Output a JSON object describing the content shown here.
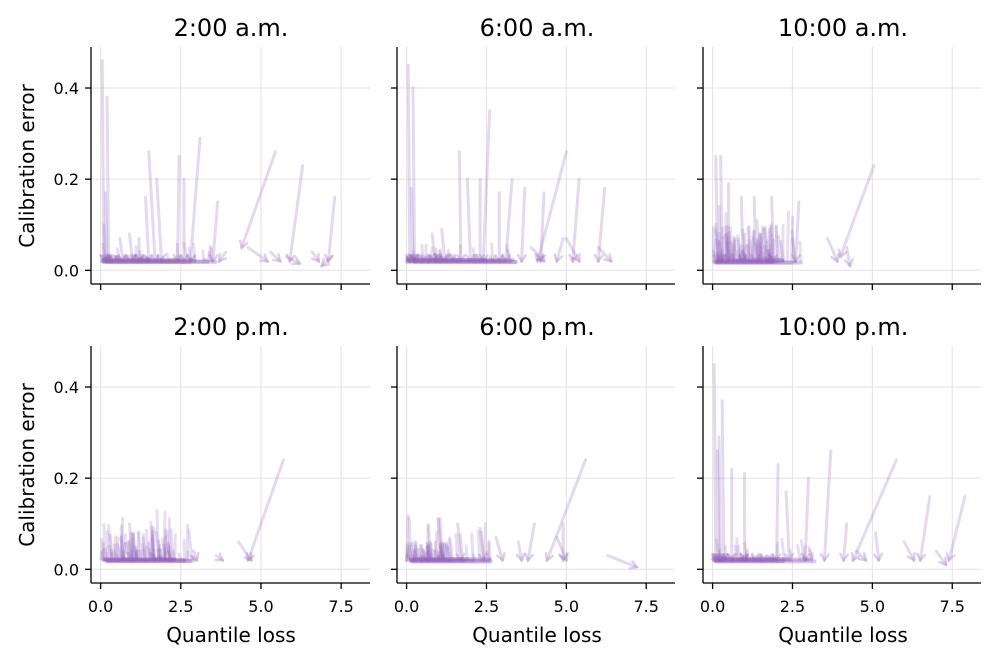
{
  "figure": {
    "color": "#9467bd",
    "grid_color": "#e6e6e6",
    "shared_x": true,
    "shared_y": true
  },
  "chart_data": [
    {
      "type": "line",
      "title": "2:00 a.m.",
      "xlabel": "",
      "ylabel": "Calibration error",
      "xlim": [
        -0.3,
        8.4
      ],
      "ylim": [
        -0.03,
        0.49
      ],
      "xticks": [
        "0.0",
        "2.5",
        "5.0",
        "7.5"
      ],
      "yticks": [
        "0.0",
        "0.2",
        "0.4"
      ],
      "grid": true,
      "segments": [
        [
          [
            0.05,
            0.46
          ],
          [
            0.1,
            0.02
          ]
        ],
        [
          [
            0.2,
            0.38
          ],
          [
            0.25,
            0.02
          ]
        ],
        [
          [
            0.15,
            0.17
          ],
          [
            0.2,
            0.02
          ]
        ],
        [
          [
            0.1,
            0.1
          ],
          [
            0.15,
            0.02
          ]
        ],
        [
          [
            1.5,
            0.26
          ],
          [
            1.7,
            0.02
          ]
        ],
        [
          [
            1.4,
            0.16
          ],
          [
            1.5,
            0.02
          ]
        ],
        [
          [
            1.75,
            0.2
          ],
          [
            1.9,
            0.02
          ]
        ],
        [
          [
            2.45,
            0.25
          ],
          [
            2.4,
            0.02
          ]
        ],
        [
          [
            3.1,
            0.29
          ],
          [
            2.8,
            0.02
          ]
        ],
        [
          [
            2.6,
            0.2
          ],
          [
            2.6,
            0.02
          ]
        ],
        [
          [
            3.65,
            0.15
          ],
          [
            3.5,
            0.02
          ]
        ],
        [
          [
            5.45,
            0.26
          ],
          [
            4.4,
            0.05
          ]
        ],
        [
          [
            6.3,
            0.23
          ],
          [
            5.9,
            0.02
          ]
        ],
        [
          [
            7.3,
            0.16
          ],
          [
            7.1,
            0.02
          ]
        ],
        [
          [
            3.9,
            0.04
          ],
          [
            3.7,
            0.02
          ]
        ],
        [
          [
            4.6,
            0.05
          ],
          [
            5.2,
            0.02
          ]
        ],
        [
          [
            5.3,
            0.04
          ],
          [
            5.6,
            0.02
          ]
        ],
        [
          [
            6.6,
            0.04
          ],
          [
            6.8,
            0.02
          ]
        ],
        [
          [
            7.2,
            0.03
          ],
          [
            6.9,
            0.01
          ]
        ],
        [
          [
            5.8,
            0.03
          ],
          [
            6.2,
            0.015
          ]
        ],
        [
          [
            0.9,
            0.08
          ],
          [
            1.0,
            0.02
          ]
        ],
        [
          [
            1.2,
            0.07
          ],
          [
            1.2,
            0.02
          ]
        ],
        [
          [
            0.6,
            0.07
          ],
          [
            0.7,
            0.02
          ]
        ]
      ],
      "cluster": {
        "x_max": 3.6,
        "y_max": 0.06,
        "dense_x": 1.5,
        "dense_y": 0.035,
        "count": 90
      }
    },
    {
      "type": "line",
      "title": "6:00 a.m.",
      "xlabel": "",
      "ylabel": "",
      "xlim": [
        -0.3,
        8.4
      ],
      "ylim": [
        -0.03,
        0.49
      ],
      "xticks": [
        "0.0",
        "2.5",
        "5.0",
        "7.5"
      ],
      "yticks": [
        "0.0",
        "0.2",
        "0.4"
      ],
      "grid": true,
      "segments": [
        [
          [
            0.05,
            0.45
          ],
          [
            0.1,
            0.02
          ]
        ],
        [
          [
            0.2,
            0.4
          ],
          [
            0.25,
            0.02
          ]
        ],
        [
          [
            0.15,
            0.18
          ],
          [
            0.2,
            0.02
          ]
        ],
        [
          [
            2.6,
            0.35
          ],
          [
            2.4,
            0.02
          ]
        ],
        [
          [
            1.65,
            0.26
          ],
          [
            1.7,
            0.02
          ]
        ],
        [
          [
            1.9,
            0.2
          ],
          [
            2.0,
            0.02
          ]
        ],
        [
          [
            2.3,
            0.2
          ],
          [
            2.3,
            0.02
          ]
        ],
        [
          [
            3.3,
            0.2
          ],
          [
            3.1,
            0.02
          ]
        ],
        [
          [
            2.9,
            0.17
          ],
          [
            2.9,
            0.02
          ]
        ],
        [
          [
            3.7,
            0.18
          ],
          [
            3.6,
            0.02
          ]
        ],
        [
          [
            5.0,
            0.26
          ],
          [
            4.1,
            0.02
          ]
        ],
        [
          [
            4.3,
            0.17
          ],
          [
            4.2,
            0.02
          ]
        ],
        [
          [
            5.4,
            0.2
          ],
          [
            5.2,
            0.02
          ]
        ],
        [
          [
            6.2,
            0.18
          ],
          [
            6.0,
            0.02
          ]
        ],
        [
          [
            4.9,
            0.07
          ],
          [
            4.7,
            0.02
          ]
        ],
        [
          [
            5.0,
            0.07
          ],
          [
            5.4,
            0.02
          ]
        ],
        [
          [
            6.0,
            0.05
          ],
          [
            6.4,
            0.02
          ]
        ],
        [
          [
            3.9,
            0.05
          ],
          [
            4.3,
            0.02
          ]
        ],
        [
          [
            1.1,
            0.09
          ],
          [
            1.2,
            0.02
          ]
        ],
        [
          [
            0.8,
            0.08
          ],
          [
            0.9,
            0.02
          ]
        ]
      ],
      "cluster": {
        "x_max": 3.7,
        "y_max": 0.06,
        "dense_x": 1.6,
        "dense_y": 0.035,
        "count": 90
      }
    },
    {
      "type": "line",
      "title": "10:00 a.m.",
      "xlabel": "",
      "ylabel": "",
      "xlim": [
        -0.3,
        8.4
      ],
      "ylim": [
        -0.03,
        0.49
      ],
      "xticks": [
        "0.0",
        "2.5",
        "5.0",
        "7.5"
      ],
      "yticks": [
        "0.0",
        "0.2",
        "0.4"
      ],
      "grid": true,
      "segments": [
        [
          [
            0.1,
            0.25
          ],
          [
            0.15,
            0.02
          ]
        ],
        [
          [
            0.25,
            0.25
          ],
          [
            0.3,
            0.02
          ]
        ],
        [
          [
            0.5,
            0.19
          ],
          [
            0.5,
            0.02
          ]
        ],
        [
          [
            0.9,
            0.16
          ],
          [
            0.95,
            0.02
          ]
        ],
        [
          [
            5.05,
            0.23
          ],
          [
            4.0,
            0.03
          ]
        ],
        [
          [
            1.3,
            0.16
          ],
          [
            1.35,
            0.02
          ]
        ],
        [
          [
            1.85,
            0.16
          ],
          [
            1.9,
            0.02
          ]
        ],
        [
          [
            2.7,
            0.15
          ],
          [
            2.6,
            0.02
          ]
        ],
        [
          [
            3.6,
            0.07
          ],
          [
            3.9,
            0.02
          ]
        ],
        [
          [
            4.2,
            0.05
          ],
          [
            4.3,
            0.01
          ]
        ],
        [
          [
            0.2,
            0.14
          ],
          [
            0.25,
            0.02
          ]
        ]
      ],
      "cluster": {
        "x_max": 2.8,
        "y_max": 0.13,
        "dense_x": 2.1,
        "dense_y": 0.1,
        "count": 110
      }
    },
    {
      "type": "line",
      "title": "2:00 p.m.",
      "xlabel": "Quantile loss",
      "ylabel": "Calibration error",
      "xlim": [
        -0.3,
        8.4
      ],
      "ylim": [
        -0.03,
        0.49
      ],
      "xticks": [
        "0.0",
        "2.5",
        "5.0",
        "7.5"
      ],
      "yticks": [
        "0.0",
        "0.2",
        "0.4"
      ],
      "grid": true,
      "segments": [
        [
          [
            5.7,
            0.24
          ],
          [
            4.6,
            0.02
          ]
        ],
        [
          [
            4.3,
            0.06
          ],
          [
            4.7,
            0.02
          ]
        ],
        [
          [
            3.6,
            0.03
          ],
          [
            3.8,
            0.02
          ]
        ],
        [
          [
            2.9,
            0.04
          ],
          [
            3.0,
            0.02
          ]
        ]
      ],
      "cluster": {
        "x_max": 2.9,
        "y_max": 0.13,
        "dense_x": 2.2,
        "dense_y": 0.1,
        "count": 110
      }
    },
    {
      "type": "line",
      "title": "6:00 p.m.",
      "xlabel": "Quantile loss",
      "ylabel": "",
      "xlim": [
        -0.3,
        8.4
      ],
      "ylim": [
        -0.03,
        0.49
      ],
      "xticks": [
        "0.0",
        "2.5",
        "5.0",
        "7.5"
      ],
      "yticks": [
        "0.0",
        "0.2",
        "0.4"
      ],
      "grid": true,
      "segments": [
        [
          [
            5.6,
            0.24
          ],
          [
            4.4,
            0.02
          ]
        ],
        [
          [
            4.0,
            0.1
          ],
          [
            3.8,
            0.02
          ]
        ],
        [
          [
            4.9,
            0.1
          ],
          [
            4.9,
            0.02
          ]
        ],
        [
          [
            4.7,
            0.07
          ],
          [
            5.0,
            0.02
          ]
        ],
        [
          [
            6.3,
            0.03
          ],
          [
            7.2,
            0.005
          ]
        ],
        [
          [
            3.5,
            0.06
          ],
          [
            3.6,
            0.02
          ]
        ],
        [
          [
            2.3,
            0.09
          ],
          [
            2.4,
            0.02
          ]
        ],
        [
          [
            2.8,
            0.07
          ],
          [
            3.0,
            0.02
          ]
        ],
        [
          [
            1.6,
            0.1
          ],
          [
            1.7,
            0.02
          ]
        ]
      ],
      "cluster": {
        "x_max": 2.8,
        "y_max": 0.12,
        "dense_x": 1.3,
        "dense_y": 0.06,
        "count": 95
      }
    },
    {
      "type": "line",
      "title": "10:00 p.m.",
      "xlabel": "Quantile loss",
      "ylabel": "",
      "xlim": [
        -0.3,
        8.4
      ],
      "ylim": [
        -0.03,
        0.49
      ],
      "xticks": [
        "0.0",
        "2.5",
        "5.0",
        "7.5"
      ],
      "yticks": [
        "0.0",
        "0.2",
        "0.4"
      ],
      "grid": true,
      "segments": [
        [
          [
            0.05,
            0.45
          ],
          [
            0.1,
            0.02
          ]
        ],
        [
          [
            0.3,
            0.37
          ],
          [
            0.35,
            0.02
          ]
        ],
        [
          [
            0.2,
            0.29
          ],
          [
            0.25,
            0.02
          ]
        ],
        [
          [
            0.15,
            0.26
          ],
          [
            0.2,
            0.02
          ]
        ],
        [
          [
            0.6,
            0.22
          ],
          [
            0.6,
            0.02
          ]
        ],
        [
          [
            1.0,
            0.21
          ],
          [
            1.0,
            0.02
          ]
        ],
        [
          [
            2.05,
            0.23
          ],
          [
            2.0,
            0.02
          ]
        ],
        [
          [
            2.3,
            0.17
          ],
          [
            2.4,
            0.02
          ]
        ],
        [
          [
            3.7,
            0.26
          ],
          [
            3.5,
            0.02
          ]
        ],
        [
          [
            3.0,
            0.2
          ],
          [
            2.9,
            0.02
          ]
        ],
        [
          [
            5.75,
            0.24
          ],
          [
            4.4,
            0.02
          ]
        ],
        [
          [
            6.8,
            0.16
          ],
          [
            6.5,
            0.02
          ]
        ],
        [
          [
            7.9,
            0.16
          ],
          [
            7.4,
            0.02
          ]
        ],
        [
          [
            4.2,
            0.1
          ],
          [
            4.1,
            0.02
          ]
        ],
        [
          [
            5.1,
            0.08
          ],
          [
            5.2,
            0.02
          ]
        ],
        [
          [
            6.0,
            0.06
          ],
          [
            6.3,
            0.02
          ]
        ],
        [
          [
            4.5,
            0.04
          ],
          [
            4.8,
            0.02
          ]
        ],
        [
          [
            7.0,
            0.04
          ],
          [
            7.3,
            0.01
          ]
        ]
      ],
      "cluster": {
        "x_max": 3.2,
        "y_max": 0.07,
        "dense_x": 1.9,
        "dense_y": 0.035,
        "count": 90
      }
    }
  ]
}
